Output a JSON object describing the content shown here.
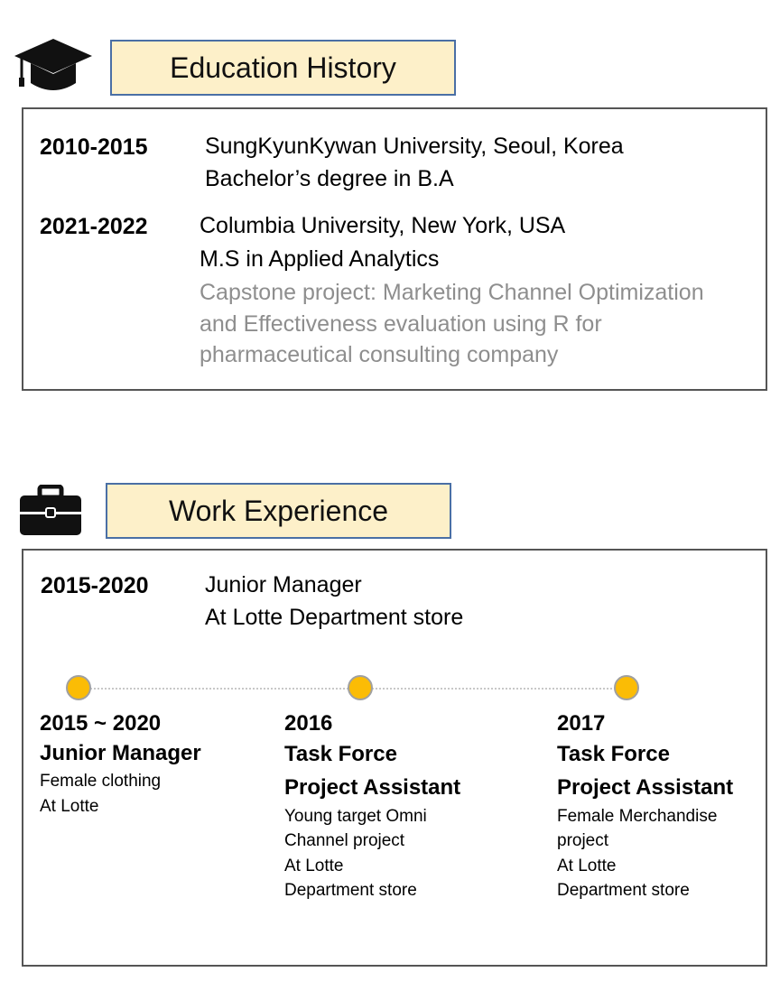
{
  "education": {
    "title": "Education History",
    "icon": "graduation-cap-icon",
    "entries": [
      {
        "years": "2010-2015",
        "lines": [
          "SungKyunKywan University, Seoul, Korea",
          "Bachelor’s degree in B.A"
        ]
      },
      {
        "years": "2021-2022",
        "lines": [
          "Columbia University, New York, USA",
          "M.S in Applied Analytics"
        ],
        "note_lines": [
          "Capstone project: Marketing Channel Optimization",
          "and Effectiveness evaluation using R for",
          "pharmaceutical consulting company"
        ]
      }
    ]
  },
  "work": {
    "title": "Work Experience",
    "icon": "briefcase-icon",
    "entry": {
      "years": "2015-2020",
      "lines": [
        "Junior Manager",
        "At Lotte Department store"
      ]
    },
    "timeline": [
      {
        "year": "2015 ~ 2020",
        "role_lines": [
          "Junior Manager"
        ],
        "desc_lines": [
          "Female clothing",
          "At Lotte"
        ]
      },
      {
        "year": "2016",
        "role_lines": [
          "Task Force",
          "Project Assistant"
        ],
        "desc_lines": [
          "Young target Omni",
          "Channel project",
          "At Lotte",
          "Department store"
        ]
      },
      {
        "year": "2017",
        "role_lines": [
          "Task Force",
          "Project Assistant"
        ],
        "desc_lines": [
          "Female Merchandise",
          "project",
          "At Lotte",
          "Department store"
        ]
      }
    ]
  },
  "colors": {
    "title_fill": "#fdf0c9",
    "title_border": "#4a6fa5",
    "timeline_dot": "#fbbc05",
    "note_text": "#8e8e8e"
  }
}
